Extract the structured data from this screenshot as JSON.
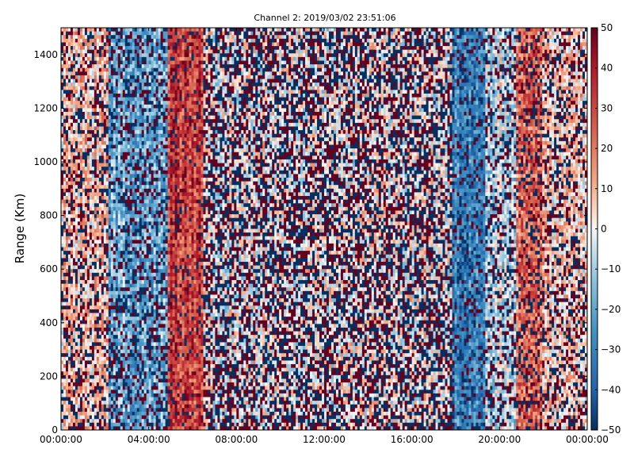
{
  "chart_data": {
    "type": "heatmap",
    "title": "Channel 2: 2019/03/02 23:51:06",
    "xlabel": "",
    "ylabel": "Range (Km)",
    "x_ticks": [
      "00:00:00",
      "04:00:00",
      "08:00:00",
      "12:00:00",
      "16:00:00",
      "20:00:00",
      "00:00:00"
    ],
    "x_range_hours": [
      0,
      24
    ],
    "y_ticks": [
      0,
      200,
      400,
      600,
      800,
      1000,
      1200,
      1400
    ],
    "ylim": [
      0,
      1500
    ],
    "colorbar": {
      "colormap": "RdBu_r",
      "range": [
        -50,
        50
      ],
      "ticks": [
        50,
        40,
        30,
        20,
        10,
        0,
        -10,
        -20,
        -30,
        -40,
        -50
      ]
    },
    "grid": false,
    "bands": [
      {
        "start_h": 0.0,
        "end_h": 2.2,
        "mean": 8,
        "noise": 0.6
      },
      {
        "start_h": 2.2,
        "end_h": 4.9,
        "mean": -20,
        "noise": 0.6
      },
      {
        "start_h": 4.9,
        "end_h": 6.5,
        "mean": 32,
        "noise": 0.25
      },
      {
        "start_h": 6.5,
        "end_h": 17.8,
        "mean": 0,
        "noise": 0.95
      },
      {
        "start_h": 17.8,
        "end_h": 19.3,
        "mean": -30,
        "noise": 0.35
      },
      {
        "start_h": 19.3,
        "end_h": 20.8,
        "mean": -5,
        "noise": 0.6
      },
      {
        "start_h": 20.8,
        "end_h": 22.0,
        "mean": 22,
        "noise": 0.5
      },
      {
        "start_h": 22.0,
        "end_h": 24.0,
        "mean": 6,
        "noise": 0.6
      }
    ]
  }
}
